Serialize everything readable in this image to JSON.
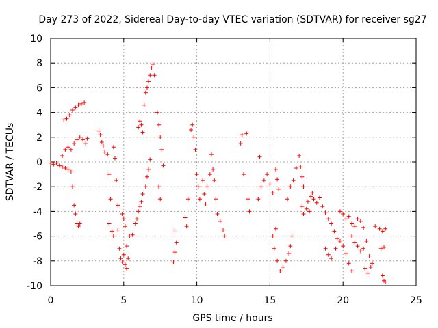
{
  "chart_data": {
    "type": "scatter",
    "title": "Day 273 of 2022, Sidereal Day-to-day VTEC variation (SDTVAR) for receiver sg27",
    "xlabel": "GPS time / hours",
    "ylabel": "SDTVAR / TECUs",
    "xlim": [
      0,
      25
    ],
    "ylim": [
      -10,
      10
    ],
    "xticks": [
      0,
      5,
      10,
      15,
      20,
      25
    ],
    "yticks": [
      -10,
      -8,
      -6,
      -4,
      -2,
      0,
      2,
      4,
      6,
      8,
      10
    ],
    "grid": true,
    "marker": "plus",
    "color": "#ff0000",
    "series": [
      {
        "name": "sg27",
        "points": [
          [
            0.0,
            -0.1
          ],
          [
            0.2,
            -0.2
          ],
          [
            0.4,
            -0.1
          ],
          [
            0.6,
            -0.3
          ],
          [
            0.8,
            -0.4
          ],
          [
            1.0,
            -0.5
          ],
          [
            1.2,
            -0.6
          ],
          [
            1.4,
            -0.8
          ],
          [
            1.5,
            -2.0
          ],
          [
            1.6,
            -3.5
          ],
          [
            1.7,
            -4.2
          ],
          [
            1.8,
            -5.0
          ],
          [
            1.9,
            -5.2
          ],
          [
            2.0,
            -5.0
          ],
          [
            0.9,
            3.4
          ],
          [
            1.1,
            3.5
          ],
          [
            1.3,
            3.8
          ],
          [
            1.5,
            4.2
          ],
          [
            1.7,
            4.4
          ],
          [
            1.9,
            4.6
          ],
          [
            2.1,
            4.7
          ],
          [
            2.3,
            4.8
          ],
          [
            0.8,
            0.5
          ],
          [
            1.0,
            1.0
          ],
          [
            1.2,
            1.2
          ],
          [
            1.4,
            1.0
          ],
          [
            1.6,
            1.5
          ],
          [
            1.8,
            1.8
          ],
          [
            2.0,
            2.0
          ],
          [
            2.2,
            1.8
          ],
          [
            2.4,
            1.5
          ],
          [
            2.5,
            1.9
          ],
          [
            3.3,
            2.5
          ],
          [
            3.4,
            2.2
          ],
          [
            3.5,
            1.6
          ],
          [
            3.6,
            1.3
          ],
          [
            3.7,
            0.8
          ],
          [
            3.9,
            0.6
          ],
          [
            4.0,
            -1.0
          ],
          [
            4.1,
            -3.0
          ],
          [
            4.0,
            -5.0
          ],
          [
            4.2,
            -5.6
          ],
          [
            4.3,
            -6.0
          ],
          [
            4.3,
            1.2
          ],
          [
            4.4,
            0.3
          ],
          [
            4.5,
            -1.5
          ],
          [
            4.6,
            -3.5
          ],
          [
            4.6,
            -5.5
          ],
          [
            4.7,
            -7.0
          ],
          [
            4.8,
            -7.8
          ],
          [
            4.9,
            -8.1
          ],
          [
            5.0,
            -7.5
          ],
          [
            5.1,
            -8.3
          ],
          [
            5.2,
            -8.6
          ],
          [
            5.3,
            -7.8
          ],
          [
            5.2,
            -6.8
          ],
          [
            5.4,
            -6.0
          ],
          [
            5.0,
            -4.6
          ],
          [
            5.1,
            -5.2
          ],
          [
            4.9,
            -4.2
          ],
          [
            5.6,
            -5.9
          ],
          [
            5.8,
            -5.0
          ],
          [
            5.9,
            -4.6
          ],
          [
            6.0,
            -4.0
          ],
          [
            6.1,
            -3.6
          ],
          [
            6.2,
            -3.2
          ],
          [
            6.3,
            -2.6
          ],
          [
            6.5,
            -2.0
          ],
          [
            6.6,
            -1.2
          ],
          [
            6.7,
            -0.6
          ],
          [
            6.8,
            0.2
          ],
          [
            6.0,
            2.8
          ],
          [
            6.1,
            3.3
          ],
          [
            6.2,
            3.0
          ],
          [
            6.3,
            2.4
          ],
          [
            6.4,
            4.6
          ],
          [
            6.5,
            5.6
          ],
          [
            6.6,
            6.0
          ],
          [
            6.7,
            6.5
          ],
          [
            6.8,
            7.0
          ],
          [
            6.9,
            7.6
          ],
          [
            7.0,
            7.9
          ],
          [
            7.1,
            7.0
          ],
          [
            7.3,
            4.0
          ],
          [
            7.4,
            3.0
          ],
          [
            7.5,
            2.0
          ],
          [
            7.6,
            1.0
          ],
          [
            7.7,
            -0.3
          ],
          [
            7.4,
            -2.0
          ],
          [
            7.5,
            -3.0
          ],
          [
            8.5,
            -5.5
          ],
          [
            8.6,
            -6.5
          ],
          [
            8.5,
            -7.3
          ],
          [
            8.4,
            -8.1
          ],
          [
            9.2,
            -4.5
          ],
          [
            9.3,
            -5.2
          ],
          [
            9.4,
            -3.0
          ],
          [
            9.6,
            2.6
          ],
          [
            9.7,
            3.0
          ],
          [
            9.8,
            2.0
          ],
          [
            9.9,
            1.0
          ],
          [
            10.0,
            -1.0
          ],
          [
            10.1,
            -2.0
          ],
          [
            10.2,
            -3.0
          ],
          [
            10.4,
            -1.5
          ],
          [
            10.5,
            -2.6
          ],
          [
            10.6,
            -3.4
          ],
          [
            10.7,
            -2.0
          ],
          [
            10.9,
            -1.0
          ],
          [
            11.0,
            0.6
          ],
          [
            11.1,
            -0.6
          ],
          [
            11.2,
            -1.5
          ],
          [
            11.3,
            -3.0
          ],
          [
            11.4,
            -4.2
          ],
          [
            11.6,
            -4.8
          ],
          [
            11.8,
            -5.5
          ],
          [
            11.9,
            -6.0
          ],
          [
            13.0,
            1.5
          ],
          [
            13.1,
            2.2
          ],
          [
            13.4,
            2.3
          ],
          [
            13.2,
            -1.0
          ],
          [
            13.5,
            -3.0
          ],
          [
            13.6,
            -4.0
          ],
          [
            14.2,
            -3.0
          ],
          [
            14.3,
            0.4
          ],
          [
            14.4,
            -2.0
          ],
          [
            14.6,
            -1.5
          ],
          [
            14.8,
            -1.0
          ],
          [
            15.0,
            -1.8
          ],
          [
            15.2,
            -2.5
          ],
          [
            15.4,
            -0.6
          ],
          [
            15.5,
            -1.4
          ],
          [
            15.6,
            -2.2
          ],
          [
            15.2,
            -6.0
          ],
          [
            15.3,
            -7.0
          ],
          [
            15.4,
            -5.4
          ],
          [
            15.5,
            -8.0
          ],
          [
            15.7,
            -8.8
          ],
          [
            15.9,
            -8.5
          ],
          [
            16.1,
            -8.0
          ],
          [
            16.3,
            -7.4
          ],
          [
            16.4,
            -6.8
          ],
          [
            16.5,
            -6.0
          ],
          [
            16.2,
            -3.0
          ],
          [
            16.4,
            -2.0
          ],
          [
            16.6,
            -1.5
          ],
          [
            16.8,
            -0.5
          ],
          [
            17.0,
            0.5
          ],
          [
            17.1,
            -0.4
          ],
          [
            17.2,
            -1.2
          ],
          [
            17.3,
            -2.0
          ],
          [
            17.2,
            -3.6
          ],
          [
            17.3,
            -4.2
          ],
          [
            17.5,
            -3.8
          ],
          [
            17.6,
            -3.2
          ],
          [
            17.7,
            -4.0
          ],
          [
            17.8,
            -2.8
          ],
          [
            17.9,
            -2.5
          ],
          [
            18.0,
            -3.0
          ],
          [
            18.2,
            -3.3
          ],
          [
            18.4,
            -2.9
          ],
          [
            18.6,
            -3.6
          ],
          [
            18.8,
            -4.1
          ],
          [
            19.0,
            -4.6
          ],
          [
            19.2,
            -5.0
          ],
          [
            19.4,
            -5.6
          ],
          [
            19.6,
            -6.2
          ],
          [
            18.8,
            -7.0
          ],
          [
            19.0,
            -7.5
          ],
          [
            19.2,
            -7.8
          ],
          [
            19.5,
            -7.0
          ],
          [
            19.8,
            -6.4
          ],
          [
            20.0,
            -6.8
          ],
          [
            20.2,
            -7.4
          ],
          [
            20.4,
            -8.2
          ],
          [
            20.6,
            -8.8
          ],
          [
            19.8,
            -4.0
          ],
          [
            20.0,
            -4.2
          ],
          [
            20.2,
            -4.6
          ],
          [
            20.4,
            -4.4
          ],
          [
            20.6,
            -5.0
          ],
          [
            20.8,
            -5.2
          ],
          [
            21.0,
            -4.6
          ],
          [
            21.2,
            -4.8
          ],
          [
            21.4,
            -5.3
          ],
          [
            20.6,
            -6.0
          ],
          [
            20.8,
            -6.5
          ],
          [
            21.0,
            -6.8
          ],
          [
            21.2,
            -7.2
          ],
          [
            21.4,
            -7.0
          ],
          [
            21.6,
            -6.4
          ],
          [
            21.8,
            -7.6
          ],
          [
            22.0,
            -8.2
          ],
          [
            22.2,
            -5.2
          ],
          [
            21.5,
            -8.6
          ],
          [
            21.7,
            -9.0
          ],
          [
            21.9,
            -8.5
          ],
          [
            22.5,
            -5.4
          ],
          [
            22.7,
            -5.6
          ],
          [
            22.9,
            -5.4
          ],
          [
            22.6,
            -7.0
          ],
          [
            22.8,
            -6.9
          ],
          [
            22.7,
            -9.2
          ],
          [
            22.8,
            -9.6
          ],
          [
            22.9,
            -9.7
          ]
        ]
      }
    ]
  }
}
